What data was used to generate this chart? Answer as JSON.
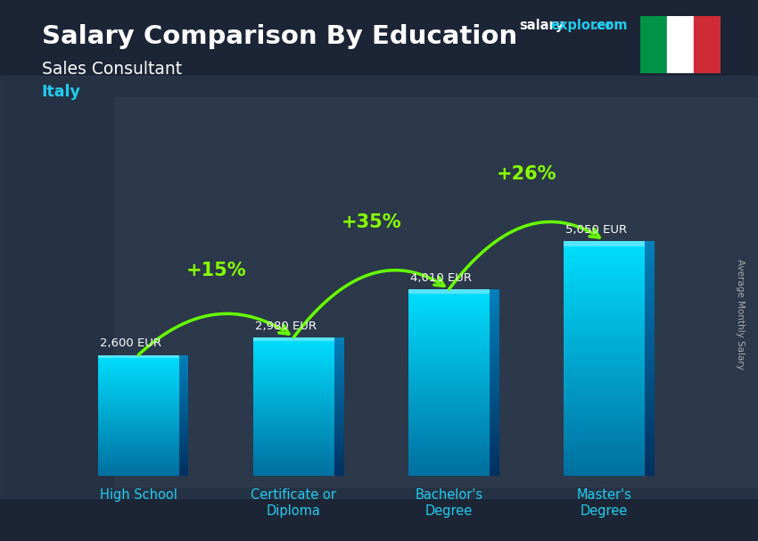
{
  "title": "Salary Comparison By Education",
  "subtitle": "Sales Consultant",
  "country": "Italy",
  "ylabel": "Average Monthly Salary",
  "categories": [
    "High School",
    "Certificate or\nDiploma",
    "Bachelor's\nDegree",
    "Master's\nDegree"
  ],
  "values": [
    2600,
    2980,
    4010,
    5050
  ],
  "value_labels": [
    "2,600 EUR",
    "2,980 EUR",
    "4,010 EUR",
    "5,050 EUR"
  ],
  "pct_changes": [
    "+15%",
    "+35%",
    "+26%"
  ],
  "title_color": "#ffffff",
  "subtitle_color": "#ffffff",
  "country_color": "#22ccee",
  "arrow_color": "#66ff00",
  "pct_color": "#88ff00",
  "value_color": "#ffffff",
  "xtick_color": "#22ccee",
  "italy_flag_green": "#009246",
  "italy_flag_white": "#ffffff",
  "italy_flag_red": "#ce2b37",
  "ylim_max": 6500,
  "bar_width": 0.52,
  "bg_dark": "#1a2030",
  "bg_mid": "#2a3550"
}
